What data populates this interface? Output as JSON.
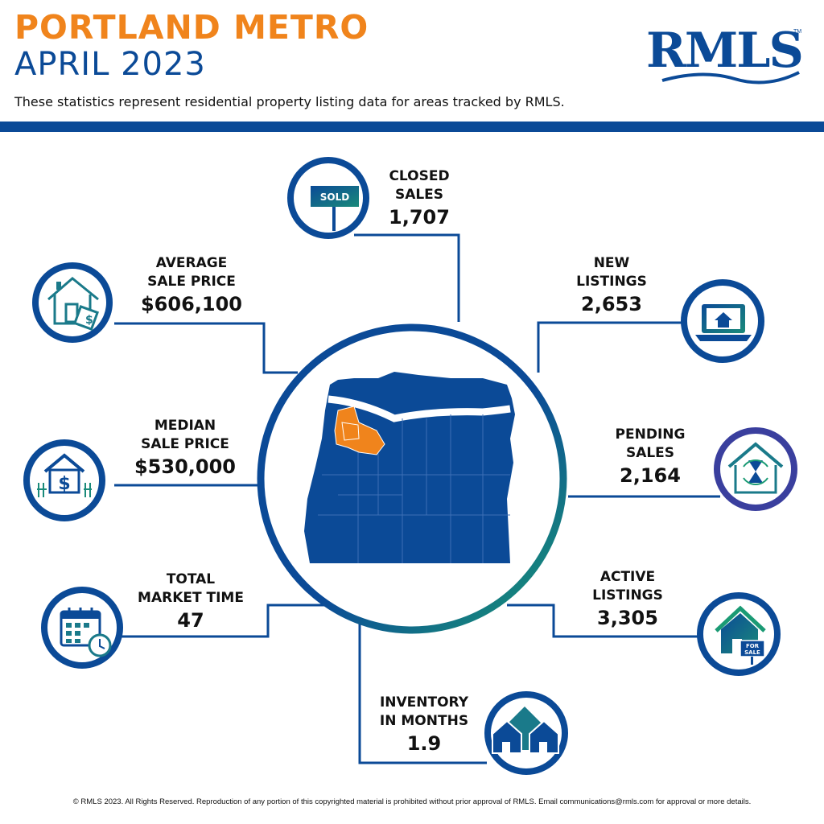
{
  "header": {
    "title_region": "PORTLAND METRO",
    "title_date": "APRIL 2023",
    "subtitle": "These statistics represent residential property listing data for areas tracked by RMLS."
  },
  "logo": {
    "text": "RMLS",
    "trademark": "TM"
  },
  "stats": {
    "closed_sales": {
      "label1": "CLOSED",
      "label2": "SALES",
      "value": "1,707",
      "icon": "sold-sign-icon"
    },
    "average_sale_price": {
      "label1": "AVERAGE",
      "label2": "SALE PRICE",
      "value": "$606,100",
      "icon": "house-price-tag-icon"
    },
    "new_listings": {
      "label1": "NEW",
      "label2": "LISTINGS",
      "value": "2,653",
      "icon": "laptop-house-icon"
    },
    "median_sale_price": {
      "label1": "MEDIAN",
      "label2": "SALE PRICE",
      "value": "$530,000",
      "icon": "house-dollar-icon"
    },
    "pending_sales": {
      "label1": "PENDING",
      "label2": "SALES",
      "value": "2,164",
      "icon": "house-hourglass-icon"
    },
    "total_market_time": {
      "label1": "TOTAL",
      "label2": "MARKET TIME",
      "value": "47",
      "icon": "calendar-clock-icon"
    },
    "active_listings": {
      "label1": "ACTIVE",
      "label2": "LISTINGS",
      "value": "3,305",
      "icon": "house-for-sale-icon"
    },
    "inventory_in_months": {
      "label1": "INVENTORY",
      "label2": "IN MONTHS",
      "value": "1.9",
      "icon": "three-houses-icon"
    }
  },
  "icon_text": {
    "sold": "SOLD",
    "for_sale_1": "FOR",
    "for_sale_2": "SALE"
  },
  "map": {
    "icon": "oregon-map-icon"
  },
  "colors": {
    "orange": "#f0841c",
    "blue": "#0b4a97",
    "teal": "#1a8a7a",
    "purple": "#3a3f9e"
  },
  "footer": "© RMLS 2023. All Rights Reserved. Reproduction of any portion of this copyrighted material is prohibited without prior approval of RMLS. Email communications@rmls.com for approval or more details."
}
